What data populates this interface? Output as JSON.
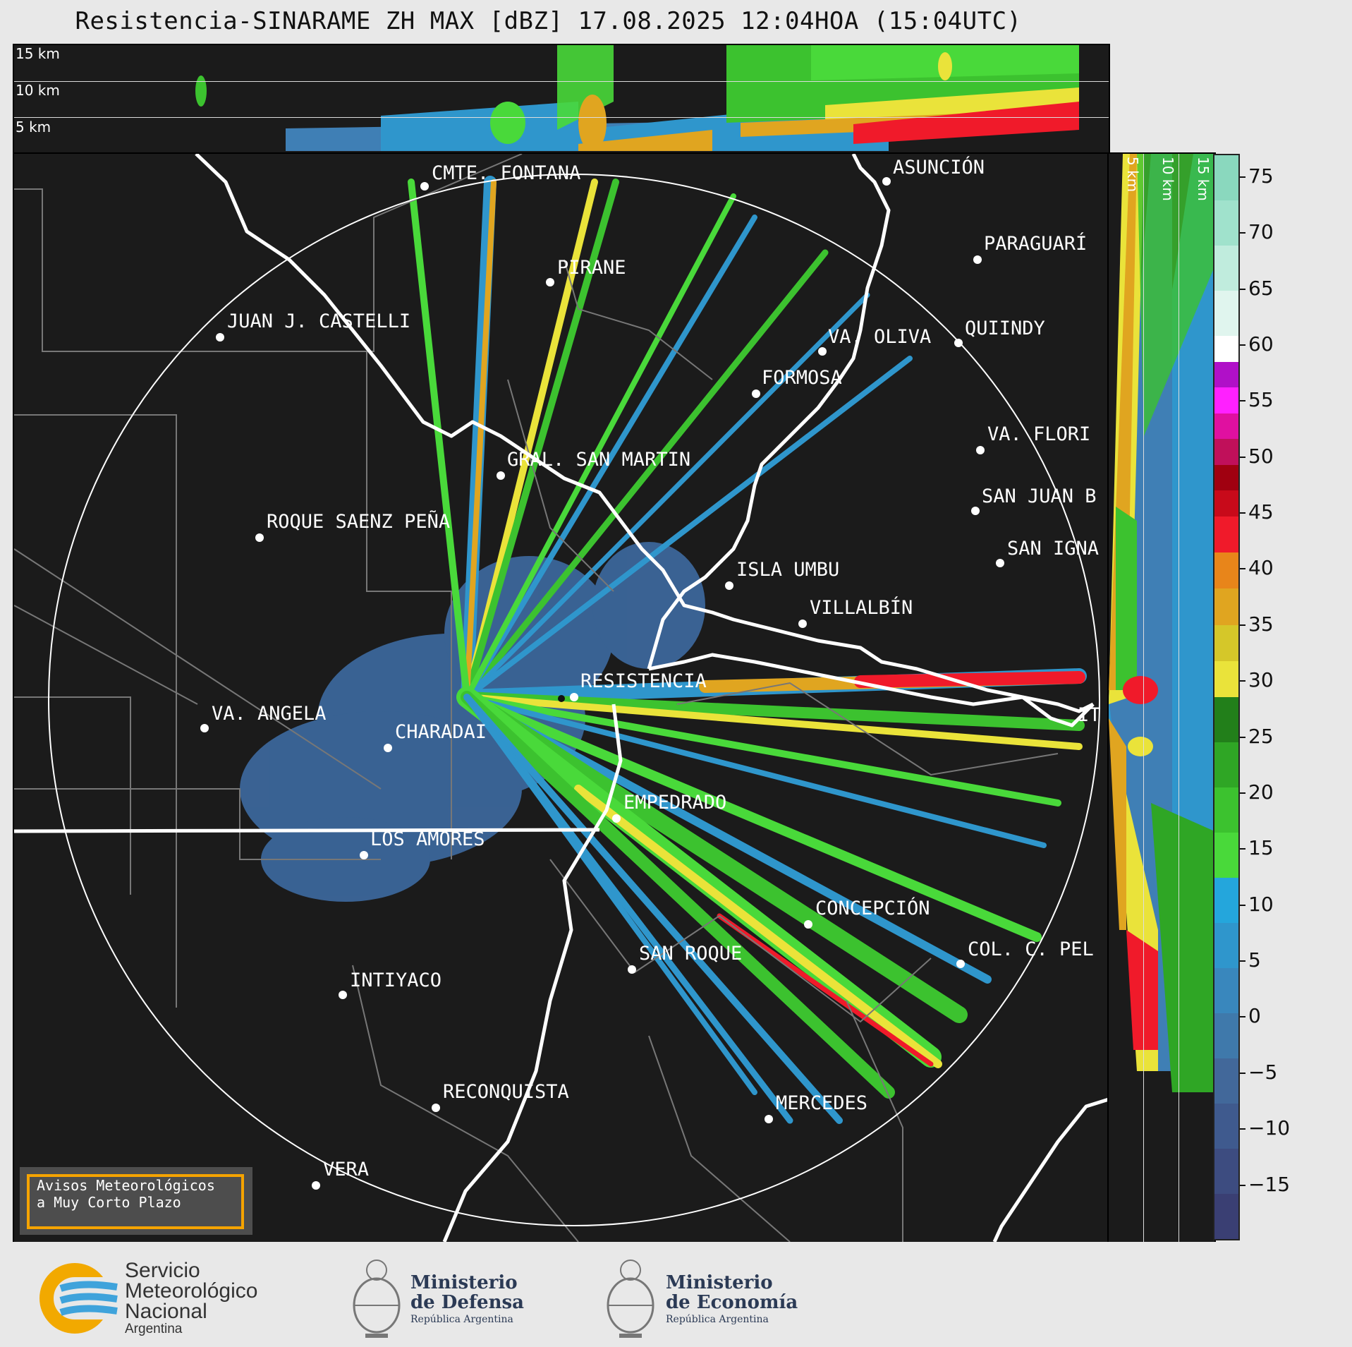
{
  "title": "Resistencia-SINARAME ZH MAX [dBZ] 17.08.2025 12:04HOA (15:04UTC)",
  "top_strip": {
    "altitude_labels": [
      "15 km",
      "10 km",
      "5 km"
    ]
  },
  "right_strip": {
    "altitude_labels": [
      "5 km",
      "10 km",
      "15 km"
    ]
  },
  "colorbar": {
    "ticks": [
      "75",
      "70",
      "65",
      "60",
      "55",
      "50",
      "45",
      "40",
      "35",
      "30",
      "25",
      "20",
      "15",
      "10",
      "5",
      "0",
      "−5",
      "−10",
      "−15"
    ],
    "colors": {
      "range_neg20_0": [
        "#3a3f73",
        "#3d4c80",
        "#3f5a8e",
        "#42689a"
      ],
      "range_0_15": [
        "#3f79ab",
        "#3987bd",
        "#2f96cc",
        "#24a6dc"
      ],
      "range_15_30": [
        "#49d93a",
        "#3cc22f",
        "#2fa625",
        "#227f1a"
      ],
      "range_30_45": [
        "#eae33a",
        "#d5c729",
        "#e0a520",
        "#e8851a",
        "#f01a2a"
      ],
      "range_45_60": [
        "#c80a1a",
        "#a00010",
        "#c0105a",
        "#e010a0",
        "#ff20ff",
        "#b010c8",
        "#ffffff"
      ],
      "range_60_75": [
        "#e0f5ee",
        "#c0ecdd",
        "#a0e2cc",
        "#8ad8be"
      ]
    }
  },
  "cities": [
    {
      "name": "ASUNCIÓN"
    },
    {
      "name": "CMTE. FONTANA"
    },
    {
      "name": "PARAGUARÍ"
    },
    {
      "name": "PIRANE"
    },
    {
      "name": "JUAN J. CASTELLI"
    },
    {
      "name": "VA. OLIVA"
    },
    {
      "name": "QUIINDY"
    },
    {
      "name": "FORMOSA"
    },
    {
      "name": "VA. FLORI"
    },
    {
      "name": "GRAL. SAN MARTIN"
    },
    {
      "name": "SAN JUAN B"
    },
    {
      "name": "ROQUE SAENZ PEÑA"
    },
    {
      "name": "SAN IGNA"
    },
    {
      "name": "ISLA UMBU"
    },
    {
      "name": "VILLALBÍN"
    },
    {
      "name": "RESISTENCIA"
    },
    {
      "name": "VA. ANGELA"
    },
    {
      "name": "CHARADAI"
    },
    {
      "name": "IT"
    },
    {
      "name": "EMPEDRADO"
    },
    {
      "name": "LOS AMORES"
    },
    {
      "name": "CONCEPCIÓN"
    },
    {
      "name": "SAN ROQUE"
    },
    {
      "name": "COL. C. PEL"
    },
    {
      "name": "INTIYACO"
    },
    {
      "name": "RECONQUISTA"
    },
    {
      "name": "MERCEDES"
    },
    {
      "name": "VERA"
    }
  ],
  "warning_box": {
    "line1": "Avisos Meteorológicos",
    "line2": "a Muy Corto Plazo"
  },
  "logos": {
    "smn": {
      "line1": "Servicio",
      "line2": "Meteorológico",
      "line3": "Nacional",
      "line4": "Argentina"
    },
    "defensa": {
      "line1": "Ministerio",
      "line2": "de Defensa",
      "line3": "República Argentina"
    },
    "economia": {
      "line1": "Ministerio",
      "line2": "de Economía",
      "line3": "República Argentina"
    }
  }
}
